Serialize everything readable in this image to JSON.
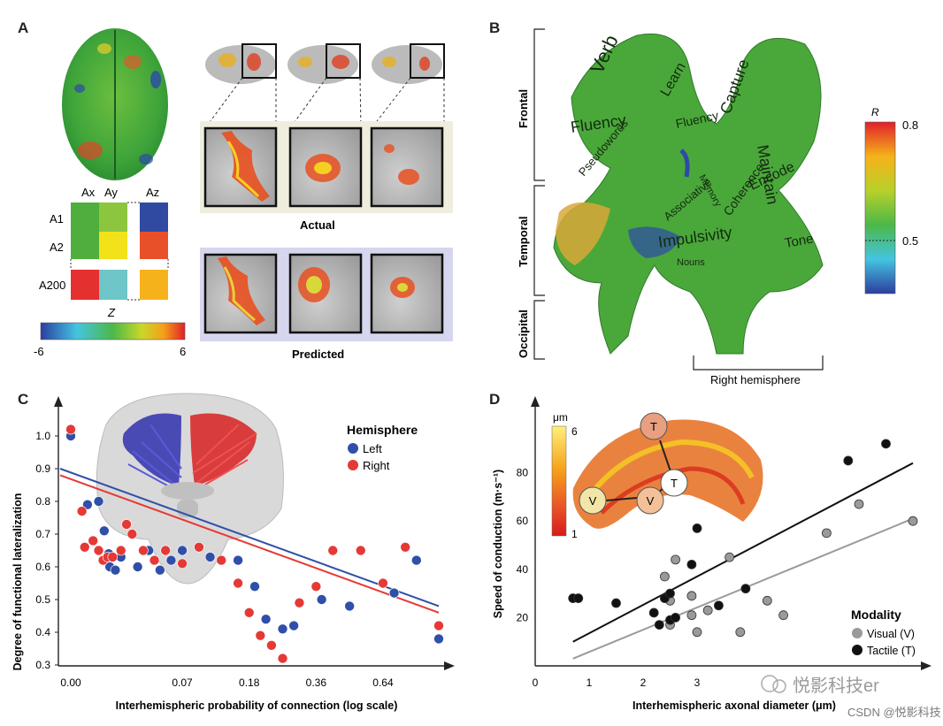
{
  "panels": {
    "a": {
      "letter": "A",
      "matrix": {
        "cols": [
          "Ax",
          "Ay",
          "Az"
        ],
        "rows": [
          "A1",
          "A2",
          "A200"
        ],
        "cells": [
          [
            "#4fae3c",
            "#8cc63f",
            "#2f4aa0"
          ],
          [
            "#4fae3c",
            "#f2e21a",
            "#e8502a"
          ],
          [
            "#e53030",
            "#6ec6c8",
            "#f6b21a"
          ]
        ]
      },
      "colorbar": {
        "label": "Z",
        "min": "-6",
        "max": "6"
      },
      "actual_label": "Actual",
      "predicted_label": "Predicted"
    },
    "b": {
      "letter": "B",
      "regions": [
        "Frontal",
        "Temporal",
        "Occipital"
      ],
      "hemisphere_label": "Right hemisphere",
      "colorbar": {
        "label": "R",
        "top": "0.8",
        "mid": "0.5"
      },
      "words": [
        "Fluency",
        "Pseudowords",
        "Verb",
        "Capture",
        "Maintain",
        "Encode",
        "Coherence",
        "Associative",
        "Memory",
        "Impulsivity",
        "Tone",
        "Nouns",
        "Fluency",
        "Learn"
      ]
    },
    "c": {
      "letter": "C",
      "legend_title": "Hemisphere",
      "legend": [
        {
          "name": "Left",
          "color": "#2f4fa8"
        },
        {
          "name": "Right",
          "color": "#e53935"
        }
      ],
      "ylabel": "Degree of functional lateralization",
      "xlabel": "Interhemispheric probability of connection (log scale)",
      "yticks": [
        "1.0",
        "0.9",
        "0.8",
        "0.7",
        "0.6",
        "0.5",
        "0.4",
        "0.3"
      ],
      "xticks": [
        "0.00",
        "0.07",
        "0.18",
        "0.36",
        "0.64"
      ]
    },
    "d": {
      "letter": "D",
      "ylabel": "Speed of conduction (m·s⁻¹)",
      "xlabel": "Interhemispheric axonal diameter (μm)",
      "yticks": [
        "80",
        "60",
        "40",
        "20"
      ],
      "xticks": [
        "0",
        "1",
        "2",
        "3"
      ],
      "inset_colorbar": {
        "unit": "μm",
        "max": "6",
        "min": "1"
      },
      "inset_nodes": [
        "T",
        "T",
        "V",
        "V"
      ],
      "legend_title": "Modality",
      "legend": [
        {
          "name": "Visual (V)",
          "color": "#9a9a9a"
        },
        {
          "name": "Tactile (T)",
          "color": "#111111"
        }
      ]
    }
  },
  "watermark": {
    "brand": "悦影科技er",
    "credit": "CSDN @悦影科技"
  },
  "chart_data": [
    {
      "type": "scatter",
      "panel": "C",
      "xlabel": "Interhemispheric probability of connection (log scale)",
      "ylabel": "Degree of functional lateralization",
      "ylim": [
        0.3,
        1.05
      ],
      "x_tick_labels": [
        "0.00",
        "0.07",
        "0.18",
        "0.36",
        "0.64"
      ],
      "series": [
        {
          "name": "Left",
          "color": "#2f4fa8",
          "points": [
            [
              0.0,
              1.0
            ],
            [
              0.03,
              0.79
            ],
            [
              0.05,
              0.8
            ],
            [
              0.06,
              0.71
            ],
            [
              0.068,
              0.64
            ],
            [
              0.07,
              0.6
            ],
            [
              0.08,
              0.59
            ],
            [
              0.09,
              0.63
            ],
            [
              0.12,
              0.6
            ],
            [
              0.14,
              0.65
            ],
            [
              0.16,
              0.59
            ],
            [
              0.18,
              0.62
            ],
            [
              0.2,
              0.65
            ],
            [
              0.25,
              0.63
            ],
            [
              0.3,
              0.62
            ],
            [
              0.33,
              0.54
            ],
            [
              0.35,
              0.44
            ],
            [
              0.38,
              0.41
            ],
            [
              0.4,
              0.42
            ],
            [
              0.45,
              0.5
            ],
            [
              0.5,
              0.48
            ],
            [
              0.58,
              0.52
            ],
            [
              0.62,
              0.62
            ],
            [
              0.66,
              0.38
            ],
            [
              0.66,
              0.42
            ]
          ]
        },
        {
          "name": "Right",
          "color": "#e53935",
          "points": [
            [
              0.0,
              1.02
            ],
            [
              0.02,
              0.77
            ],
            [
              0.025,
              0.66
            ],
            [
              0.04,
              0.68
            ],
            [
              0.05,
              0.65
            ],
            [
              0.058,
              0.62
            ],
            [
              0.066,
              0.63
            ],
            [
              0.075,
              0.63
            ],
            [
              0.09,
              0.65
            ],
            [
              0.1,
              0.73
            ],
            [
              0.11,
              0.7
            ],
            [
              0.13,
              0.65
            ],
            [
              0.15,
              0.62
            ],
            [
              0.17,
              0.65
            ],
            [
              0.2,
              0.61
            ],
            [
              0.23,
              0.66
            ],
            [
              0.27,
              0.62
            ],
            [
              0.3,
              0.55
            ],
            [
              0.32,
              0.46
            ],
            [
              0.34,
              0.39
            ],
            [
              0.36,
              0.36
            ],
            [
              0.38,
              0.32
            ],
            [
              0.41,
              0.49
            ],
            [
              0.44,
              0.54
            ],
            [
              0.47,
              0.65
            ],
            [
              0.52,
              0.65
            ],
            [
              0.56,
              0.55
            ],
            [
              0.6,
              0.66
            ],
            [
              0.66,
              0.42
            ]
          ]
        }
      ],
      "fits": [
        {
          "name": "Left",
          "color": "#2f4fa8",
          "start": [
            0.0,
            0.9
          ],
          "end": [
            0.66,
            0.48
          ]
        },
        {
          "name": "Right",
          "color": "#e53935",
          "start": [
            0.0,
            0.88
          ],
          "end": [
            0.66,
            0.46
          ]
        }
      ]
    },
    {
      "type": "scatter",
      "panel": "D",
      "xlabel": "Interhemispheric axonal diameter (μm)",
      "ylabel": "Speed of conduction (m·s⁻¹)",
      "xlim": [
        0,
        7
      ],
      "ylim": [
        0,
        100
      ],
      "series": [
        {
          "name": "Visual (V)",
          "color": "#9a9a9a",
          "points": [
            [
              2.4,
              37
            ],
            [
              2.5,
              27
            ],
            [
              2.5,
              17
            ],
            [
              2.6,
              44
            ],
            [
              2.9,
              29
            ],
            [
              2.9,
              21
            ],
            [
              3.0,
              14
            ],
            [
              3.2,
              23
            ],
            [
              3.6,
              45
            ],
            [
              3.8,
              14
            ],
            [
              4.3,
              27
            ],
            [
              4.6,
              21
            ],
            [
              5.4,
              55
            ],
            [
              6.0,
              67
            ],
            [
              7.0,
              60
            ]
          ]
        },
        {
          "name": "Tactile (T)",
          "color": "#111111",
          "points": [
            [
              0.7,
              28
            ],
            [
              0.8,
              28
            ],
            [
              1.5,
              26
            ],
            [
              2.2,
              22
            ],
            [
              2.3,
              17
            ],
            [
              2.4,
              28
            ],
            [
              2.5,
              30
            ],
            [
              2.5,
              19
            ],
            [
              2.6,
              20
            ],
            [
              2.9,
              42
            ],
            [
              3.0,
              57
            ],
            [
              3.4,
              25
            ],
            [
              3.9,
              32
            ],
            [
              5.8,
              85
            ],
            [
              6.5,
              92
            ]
          ]
        }
      ],
      "fits": [
        {
          "name": "Tactile (T)",
          "color": "#111111",
          "start": [
            0.7,
            10
          ],
          "end": [
            7.0,
            84
          ]
        },
        {
          "name": "Visual (V)",
          "color": "#9a9a9a",
          "start": [
            0.7,
            3
          ],
          "end": [
            7.0,
            61
          ]
        }
      ]
    }
  ]
}
